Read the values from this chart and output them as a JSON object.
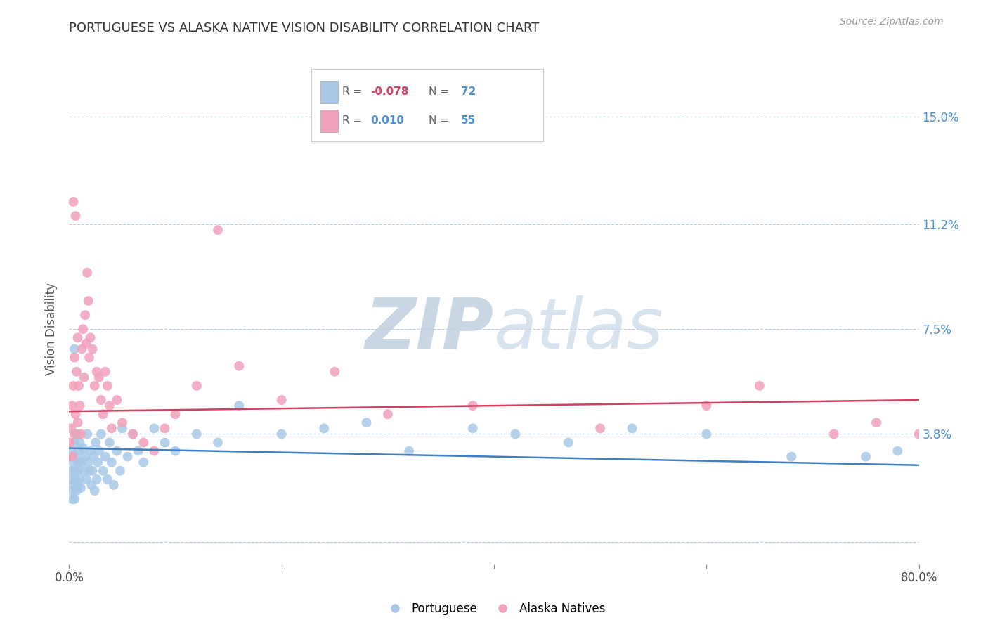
{
  "title": "PORTUGUESE VS ALASKA NATIVE VISION DISABILITY CORRELATION CHART",
  "source": "Source: ZipAtlas.com",
  "ylabel": "Vision Disability",
  "xlim": [
    0.0,
    0.8
  ],
  "ylim": [
    -0.008,
    0.158
  ],
  "yticks": [
    0.0,
    0.038,
    0.075,
    0.112,
    0.15
  ],
  "ytick_labels": [
    "",
    "3.8%",
    "7.5%",
    "11.2%",
    "15.0%"
  ],
  "xticks": [
    0.0,
    0.2,
    0.4,
    0.6,
    0.8
  ],
  "xtick_labels": [
    "0.0%",
    "",
    "",
    "",
    "80.0%"
  ],
  "blue_color": "#a8c8e8",
  "pink_color": "#f0a0b8",
  "blue_line_color": "#4080c0",
  "pink_line_color": "#d04060",
  "watermark_zip": "ZIP",
  "watermark_atlas": "atlas",
  "watermark_color": "#ccd8ee",
  "background_color": "#ffffff",
  "blue_line_y0": 0.033,
  "blue_line_y1": 0.027,
  "pink_line_y0": 0.046,
  "pink_line_y1": 0.05,
  "blue_points_x": [
    0.001,
    0.002,
    0.002,
    0.003,
    0.003,
    0.003,
    0.004,
    0.004,
    0.005,
    0.005,
    0.005,
    0.006,
    0.006,
    0.007,
    0.007,
    0.008,
    0.008,
    0.009,
    0.009,
    0.01,
    0.01,
    0.011,
    0.012,
    0.013,
    0.014,
    0.015,
    0.016,
    0.017,
    0.018,
    0.019,
    0.02,
    0.021,
    0.022,
    0.023,
    0.024,
    0.025,
    0.026,
    0.027,
    0.028,
    0.03,
    0.032,
    0.034,
    0.036,
    0.038,
    0.04,
    0.042,
    0.045,
    0.048,
    0.05,
    0.055,
    0.06,
    0.065,
    0.07,
    0.08,
    0.09,
    0.1,
    0.12,
    0.14,
    0.16,
    0.2,
    0.24,
    0.28,
    0.32,
    0.38,
    0.42,
    0.47,
    0.53,
    0.6,
    0.68,
    0.75,
    0.78,
    0.005
  ],
  "blue_points_y": [
    0.025,
    0.03,
    0.022,
    0.018,
    0.032,
    0.015,
    0.028,
    0.02,
    0.035,
    0.025,
    0.015,
    0.022,
    0.03,
    0.018,
    0.038,
    0.025,
    0.02,
    0.032,
    0.028,
    0.022,
    0.035,
    0.019,
    0.028,
    0.033,
    0.025,
    0.03,
    0.022,
    0.038,
    0.028,
    0.025,
    0.032,
    0.02,
    0.025,
    0.03,
    0.018,
    0.035,
    0.022,
    0.028,
    0.032,
    0.038,
    0.025,
    0.03,
    0.022,
    0.035,
    0.028,
    0.02,
    0.032,
    0.025,
    0.04,
    0.03,
    0.038,
    0.032,
    0.028,
    0.04,
    0.035,
    0.032,
    0.038,
    0.035,
    0.048,
    0.038,
    0.04,
    0.042,
    0.032,
    0.04,
    0.038,
    0.035,
    0.04,
    0.038,
    0.03,
    0.03,
    0.032,
    0.068
  ],
  "pink_points_x": [
    0.001,
    0.002,
    0.003,
    0.003,
    0.004,
    0.005,
    0.005,
    0.006,
    0.007,
    0.008,
    0.009,
    0.01,
    0.011,
    0.012,
    0.013,
    0.014,
    0.015,
    0.016,
    0.017,
    0.018,
    0.019,
    0.02,
    0.022,
    0.024,
    0.026,
    0.028,
    0.03,
    0.032,
    0.034,
    0.036,
    0.038,
    0.04,
    0.045,
    0.05,
    0.06,
    0.07,
    0.08,
    0.09,
    0.1,
    0.12,
    0.14,
    0.16,
    0.2,
    0.25,
    0.3,
    0.38,
    0.5,
    0.6,
    0.65,
    0.72,
    0.76,
    0.8,
    0.004,
    0.006,
    0.008
  ],
  "pink_points_y": [
    0.035,
    0.04,
    0.048,
    0.03,
    0.055,
    0.038,
    0.065,
    0.045,
    0.06,
    0.042,
    0.055,
    0.048,
    0.038,
    0.068,
    0.075,
    0.058,
    0.08,
    0.07,
    0.095,
    0.085,
    0.065,
    0.072,
    0.068,
    0.055,
    0.06,
    0.058,
    0.05,
    0.045,
    0.06,
    0.055,
    0.048,
    0.04,
    0.05,
    0.042,
    0.038,
    0.035,
    0.032,
    0.04,
    0.045,
    0.055,
    0.11,
    0.062,
    0.05,
    0.06,
    0.045,
    0.048,
    0.04,
    0.048,
    0.055,
    0.038,
    0.042,
    0.038,
    0.12,
    0.115,
    0.072
  ]
}
